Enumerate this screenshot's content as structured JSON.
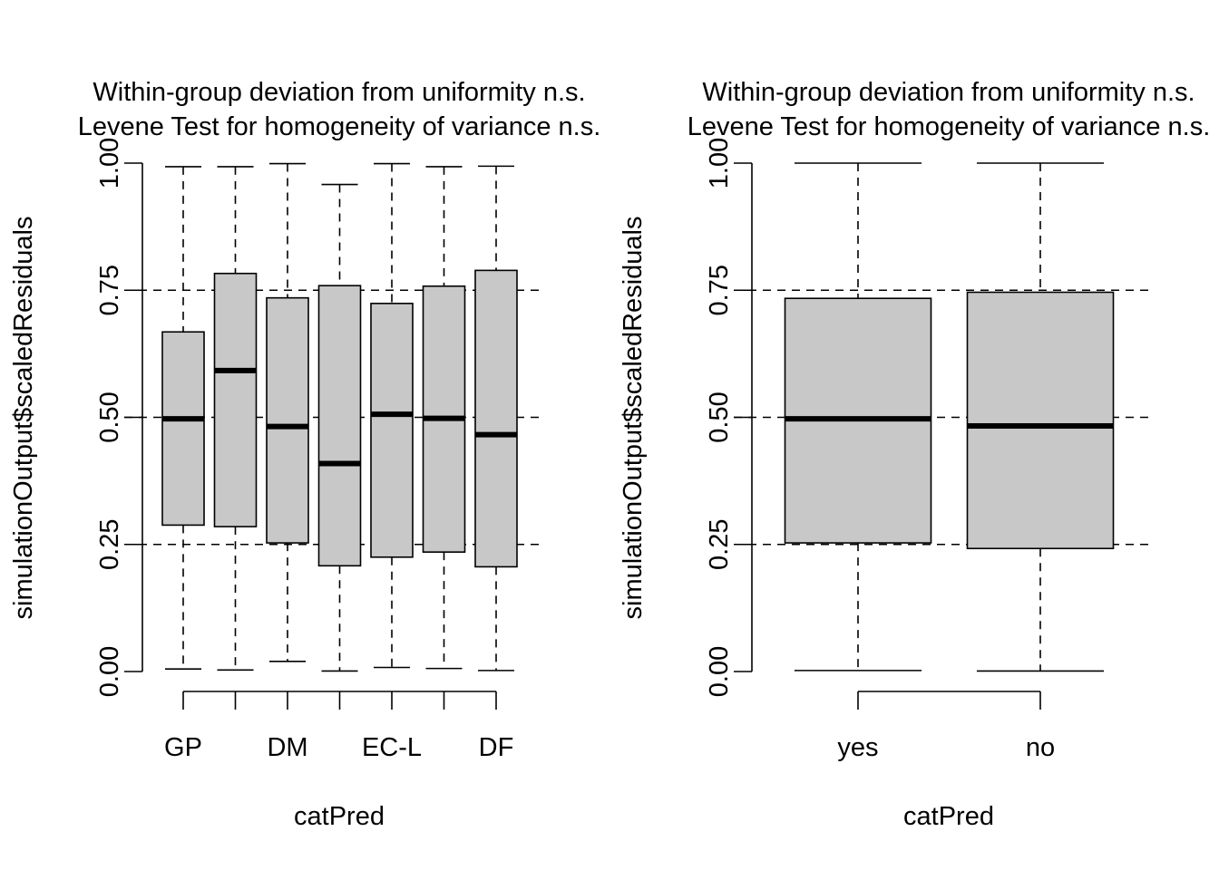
{
  "chart_data": [
    {
      "type": "boxplot",
      "title": [
        "Within-group deviation from uniformity n.s.",
        "Levene Test for homogeneity of variance n.s."
      ],
      "xlabel": "catPred",
      "ylabel": "simulationOutput$scaledResiduals",
      "ylim": [
        0,
        1
      ],
      "yticks": [
        "0.00",
        "0.25",
        "0.50",
        "0.75",
        "1.00"
      ],
      "reference_lines": [
        0.25,
        0.5,
        0.75
      ],
      "groups": [
        {
          "label": "GP",
          "min": 0.005,
          "q1": 0.288,
          "median": 0.497,
          "q3": 0.668,
          "max": 0.993
        },
        {
          "label": "",
          "min": 0.003,
          "q1": 0.285,
          "median": 0.592,
          "q3": 0.783,
          "max": 0.993
        },
        {
          "label": "DM",
          "min": 0.02,
          "q1": 0.253,
          "median": 0.482,
          "q3": 0.735,
          "max": 0.999
        },
        {
          "label": "",
          "min": 0.001,
          "q1": 0.208,
          "median": 0.409,
          "q3": 0.759,
          "max": 0.958
        },
        {
          "label": "EC-L",
          "min": 0.008,
          "q1": 0.225,
          "median": 0.506,
          "q3": 0.724,
          "max": 0.999
        },
        {
          "label": "",
          "min": 0.006,
          "q1": 0.235,
          "median": 0.498,
          "q3": 0.758,
          "max": 0.993
        },
        {
          "label": "DF",
          "min": 0.002,
          "q1": 0.206,
          "median": 0.466,
          "q3": 0.789,
          "max": 0.994
        }
      ]
    },
    {
      "type": "boxplot",
      "title": [
        "Within-group deviation from uniformity n.s.",
        "Levene Test for homogeneity of variance n.s."
      ],
      "xlabel": "catPred",
      "ylabel": "simulationOutput$scaledResiduals",
      "ylim": [
        0,
        1
      ],
      "yticks": [
        "0.00",
        "0.25",
        "0.50",
        "0.75",
        "1.00"
      ],
      "reference_lines": [
        0.25,
        0.5,
        0.75
      ],
      "groups": [
        {
          "label": "yes",
          "min": 0.002,
          "q1": 0.253,
          "median": 0.497,
          "q3": 0.734,
          "max": 1.0
        },
        {
          "label": "no",
          "min": 0.001,
          "q1": 0.242,
          "median": 0.483,
          "q3": 0.746,
          "max": 1.0
        }
      ]
    }
  ]
}
